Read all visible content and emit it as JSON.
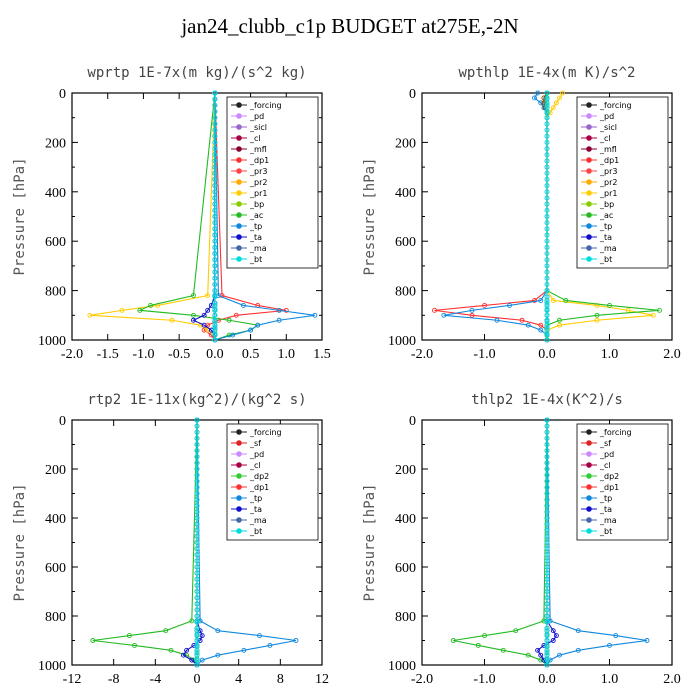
{
  "title": "jan24_clubb_c1p  BUDGET at275E,-2N",
  "chart_data": [
    {
      "type": "line",
      "title": "wprtp  1E-7x(m kg)/(s^2 kg)",
      "ylabel": "Pressure [hPa]",
      "xlim": [
        -2.0,
        1.5
      ],
      "ylim": [
        1000,
        0
      ],
      "xticks": [
        "-2.0",
        "-1.5",
        "-1.0",
        "-0.5",
        "0.0",
        "0.5",
        "1.0",
        "1.5"
      ],
      "xtick_values": [
        -2.0,
        -1.5,
        -1.0,
        -0.5,
        0.0,
        0.5,
        1.0,
        1.5
      ],
      "yticks": [
        "0",
        "200",
        "400",
        "600",
        "800",
        "1000"
      ],
      "legend": [
        "_forcing",
        "_pd",
        "_sicl",
        "_cl",
        "_mfl",
        "_dp1",
        "_pr3",
        "_pr2",
        "_pr1",
        "_bp",
        "_ac",
        "_tp",
        "_ta",
        "_ma",
        "_bt"
      ],
      "pressure": [
        0,
        820,
        860,
        880,
        900,
        920,
        940,
        960,
        980,
        1000
      ],
      "series": [
        {
          "name": "_forcing",
          "color": "#000000",
          "values": [
            0,
            0,
            0,
            0,
            0,
            0,
            0,
            0,
            0,
            0
          ]
        },
        {
          "name": "_pd",
          "color": "#cc88ff",
          "values": [
            0,
            0,
            0,
            0,
            0,
            0,
            0,
            0,
            0,
            0
          ]
        },
        {
          "name": "_dp1",
          "color": "#ff3030",
          "values": [
            0,
            0.1,
            0.6,
            1.0,
            0.3,
            0.05,
            -0.1,
            -0.15,
            -0.05,
            0
          ]
        },
        {
          "name": "_pr1",
          "color": "#ffcc00",
          "values": [
            0,
            -0.1,
            -0.8,
            -1.3,
            -1.75,
            -0.6,
            -0.2,
            -0.1,
            0,
            0
          ]
        },
        {
          "name": "_ac",
          "color": "#22bb22",
          "values": [
            0,
            -0.3,
            -0.9,
            -1.05,
            -0.3,
            0.2,
            0.6,
            0.5,
            0.2,
            0
          ]
        },
        {
          "name": "_tp",
          "color": "#1188dd",
          "values": [
            0,
            0.05,
            0.4,
            0.9,
            1.4,
            0.9,
            0.6,
            0.5,
            0.25,
            0
          ]
        },
        {
          "name": "_ta",
          "color": "#1111cc",
          "values": [
            0,
            0,
            -0.05,
            -0.1,
            -0.15,
            -0.3,
            -0.15,
            -0.05,
            0,
            0
          ]
        },
        {
          "name": "_bt",
          "color": "#00dddd",
          "values": [
            0,
            0,
            0,
            0,
            0,
            0,
            0,
            0,
            0,
            0
          ]
        }
      ]
    },
    {
      "type": "line",
      "title": "wpthlp  1E-4x(m K)/s^2",
      "ylabel": "Pressure [hPa]",
      "xlim": [
        -2.0,
        2.0
      ],
      "ylim": [
        1000,
        0
      ],
      "xticks": [
        "-2.0",
        "-1.0",
        "0.0",
        "1.0",
        "2.0"
      ],
      "xtick_values": [
        -2.0,
        -1.0,
        0.0,
        1.0,
        2.0
      ],
      "yticks": [
        "0",
        "200",
        "400",
        "600",
        "800",
        "1000"
      ],
      "legend": [
        "_forcing",
        "_pd",
        "_sicl",
        "_cl",
        "_mfl",
        "_dp1",
        "_pr3",
        "_pr2",
        "_pr1",
        "_bp",
        "_ac",
        "_tp",
        "_ta",
        "_ma",
        "_bt"
      ],
      "pressure": [
        0,
        20,
        40,
        60,
        80,
        100,
        800,
        840,
        860,
        880,
        900,
        920,
        940,
        960,
        980,
        1000
      ],
      "series": [
        {
          "name": "_forcing",
          "color": "#cc88ff",
          "values": [
            0,
            0,
            0,
            0,
            0,
            0,
            0,
            0,
            0,
            0,
            0,
            0,
            0,
            0,
            0,
            0
          ]
        },
        {
          "name": "_dp1",
          "color": "#ff3030",
          "values": [
            0,
            0,
            0,
            0,
            0,
            0,
            0,
            -0.2,
            -1.0,
            -1.8,
            -1.2,
            -0.4,
            -0.1,
            0,
            0,
            0
          ]
        },
        {
          "name": "_pr1",
          "color": "#ffcc00",
          "values": [
            0.25,
            0.2,
            0.15,
            0.1,
            0.05,
            0,
            0,
            0.1,
            0.8,
            1.3,
            1.7,
            0.8,
            0.2,
            0,
            0,
            0
          ]
        },
        {
          "name": "_ac",
          "color": "#22bb22",
          "values": [
            0,
            0,
            0,
            0,
            0,
            0,
            0,
            0.3,
            1.0,
            1.8,
            0.8,
            0.2,
            0,
            0,
            0,
            0
          ]
        },
        {
          "name": "_tp",
          "color": "#1188dd",
          "values": [
            -0.15,
            -0.2,
            -0.1,
            -0.05,
            0,
            0,
            0,
            -0.1,
            -0.6,
            -1.2,
            -1.65,
            -0.8,
            -0.3,
            -0.1,
            0,
            0
          ]
        },
        {
          "name": "_ma",
          "color": "#884400",
          "values": [
            0,
            -0.05,
            -0.05,
            -0.03,
            0,
            0,
            0,
            0,
            0,
            0,
            0,
            0,
            0,
            0,
            0,
            0
          ]
        },
        {
          "name": "_bt",
          "color": "#00dddd",
          "values": [
            0,
            0,
            0,
            0,
            0,
            0,
            0,
            0,
            0,
            0,
            0,
            0,
            0,
            0,
            0,
            0
          ]
        }
      ]
    },
    {
      "type": "line",
      "title": "rtp2  1E-11x(kg^2)/(kg^2 s)",
      "ylabel": "Pressure [hPa]",
      "xlim": [
        -12,
        12
      ],
      "ylim": [
        1000,
        0
      ],
      "xticks": [
        "-12",
        "-8",
        "-4",
        "0",
        "4",
        "8",
        "12"
      ],
      "xtick_values": [
        -12,
        -8,
        -4,
        0,
        4,
        8,
        12
      ],
      "yticks": [
        "0",
        "200",
        "400",
        "600",
        "800",
        "1000"
      ],
      "legend": [
        "_forcing",
        "_sf",
        "_pd",
        "_cl",
        "_dp2",
        "_dp1",
        "_tp",
        "_ta",
        "_ma",
        "_bt"
      ],
      "pressure": [
        0,
        820,
        860,
        880,
        900,
        920,
        940,
        960,
        980,
        1000
      ],
      "series": [
        {
          "name": "_forcing",
          "color": "#dd2222",
          "values": [
            0,
            0,
            0,
            0,
            0,
            0,
            0,
            0,
            0,
            0
          ]
        },
        {
          "name": "_dp1",
          "color": "#22bb22",
          "values": [
            0,
            -0.5,
            -3.0,
            -6.5,
            -10.0,
            -6.0,
            -2.5,
            -1.0,
            -0.3,
            0
          ]
        },
        {
          "name": "_tp",
          "color": "#1188dd",
          "values": [
            0,
            0.3,
            2.0,
            6.0,
            9.5,
            7.0,
            4.5,
            2.0,
            0.5,
            0
          ]
        },
        {
          "name": "_ta",
          "color": "#1111cc",
          "values": [
            0,
            0,
            0.3,
            0.5,
            0.3,
            -0.3,
            -1.0,
            -1.3,
            -0.5,
            0
          ]
        },
        {
          "name": "_bt",
          "color": "#00dddd",
          "values": [
            0,
            0,
            0,
            0,
            0,
            0,
            0,
            0,
            0,
            0
          ]
        }
      ]
    },
    {
      "type": "line",
      "title": "thlp2  1E-4x(K^2)/s",
      "ylabel": "Pressure [hPa]",
      "xlim": [
        -2.0,
        2.0
      ],
      "ylim": [
        1000,
        0
      ],
      "xticks": [
        "-2.0",
        "-1.0",
        "0.0",
        "1.0",
        "2.0"
      ],
      "xtick_values": [
        -2.0,
        -1.0,
        0.0,
        1.0,
        2.0
      ],
      "yticks": [
        "0",
        "200",
        "400",
        "600",
        "800",
        "1000"
      ],
      "legend": [
        "_forcing",
        "_sf",
        "_pd",
        "_cl",
        "_dp2",
        "_dp1",
        "_tp",
        "_ta",
        "_ma",
        "_bt"
      ],
      "pressure": [
        0,
        820,
        860,
        880,
        900,
        920,
        940,
        960,
        980,
        1000
      ],
      "series": [
        {
          "name": "_forcing",
          "color": "#dd2222",
          "values": [
            0,
            0,
            0,
            0,
            0,
            0,
            0,
            0,
            0,
            0
          ]
        },
        {
          "name": "_dp1",
          "color": "#22bb22",
          "values": [
            0,
            -0.05,
            -0.5,
            -1.0,
            -1.5,
            -1.1,
            -0.7,
            -0.3,
            -0.1,
            0
          ]
        },
        {
          "name": "_tp",
          "color": "#1188dd",
          "values": [
            0,
            0.05,
            0.5,
            1.1,
            1.6,
            1.0,
            0.5,
            0.2,
            0.05,
            0
          ]
        },
        {
          "name": "_ta",
          "color": "#1111cc",
          "values": [
            0,
            0,
            0.1,
            0.15,
            0.1,
            -0.05,
            -0.15,
            -0.1,
            -0.05,
            0
          ]
        },
        {
          "name": "_bt",
          "color": "#00dddd",
          "values": [
            0,
            0,
            0,
            0,
            0,
            0,
            0,
            0,
            0,
            0
          ]
        }
      ]
    }
  ]
}
